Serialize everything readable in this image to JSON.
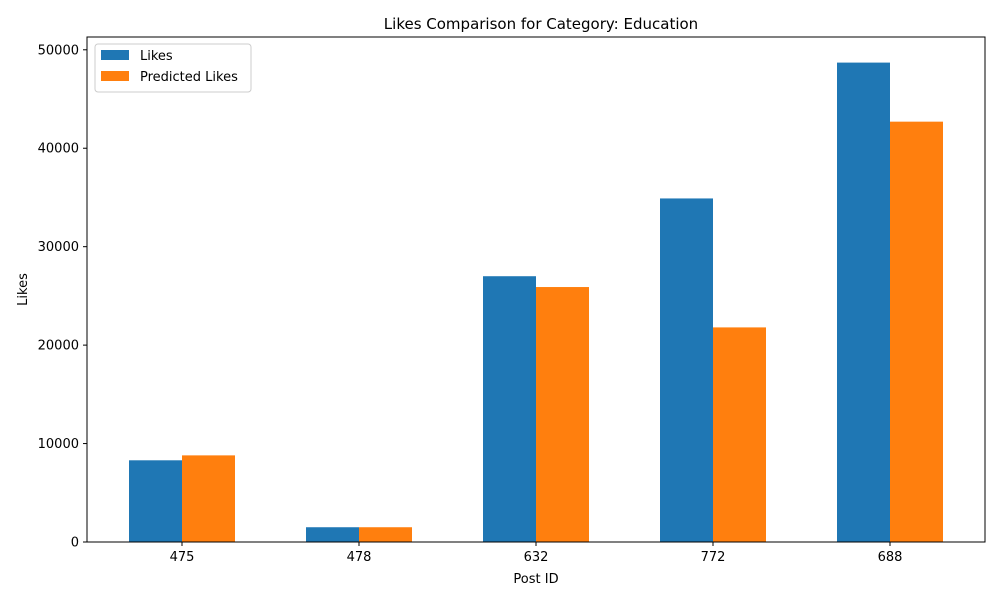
{
  "chart_data": {
    "type": "bar",
    "title": "Likes Comparison for Category: Education",
    "xlabel": "Post ID",
    "ylabel": "Likes",
    "categories": [
      "475",
      "478",
      "632",
      "772",
      "688"
    ],
    "series": [
      {
        "name": "Likes",
        "color": "#1f77b4",
        "values": [
          8300,
          1500,
          27000,
          34900,
          48700
        ]
      },
      {
        "name": "Predicted Likes",
        "color": "#ff7f0e",
        "values": [
          8800,
          1500,
          25900,
          21800,
          42700
        ]
      }
    ],
    "ylim": [
      0,
      51300
    ],
    "yticks": [
      0,
      10000,
      20000,
      30000,
      40000,
      50000
    ],
    "grid": false,
    "legend_position": "top-left"
  }
}
